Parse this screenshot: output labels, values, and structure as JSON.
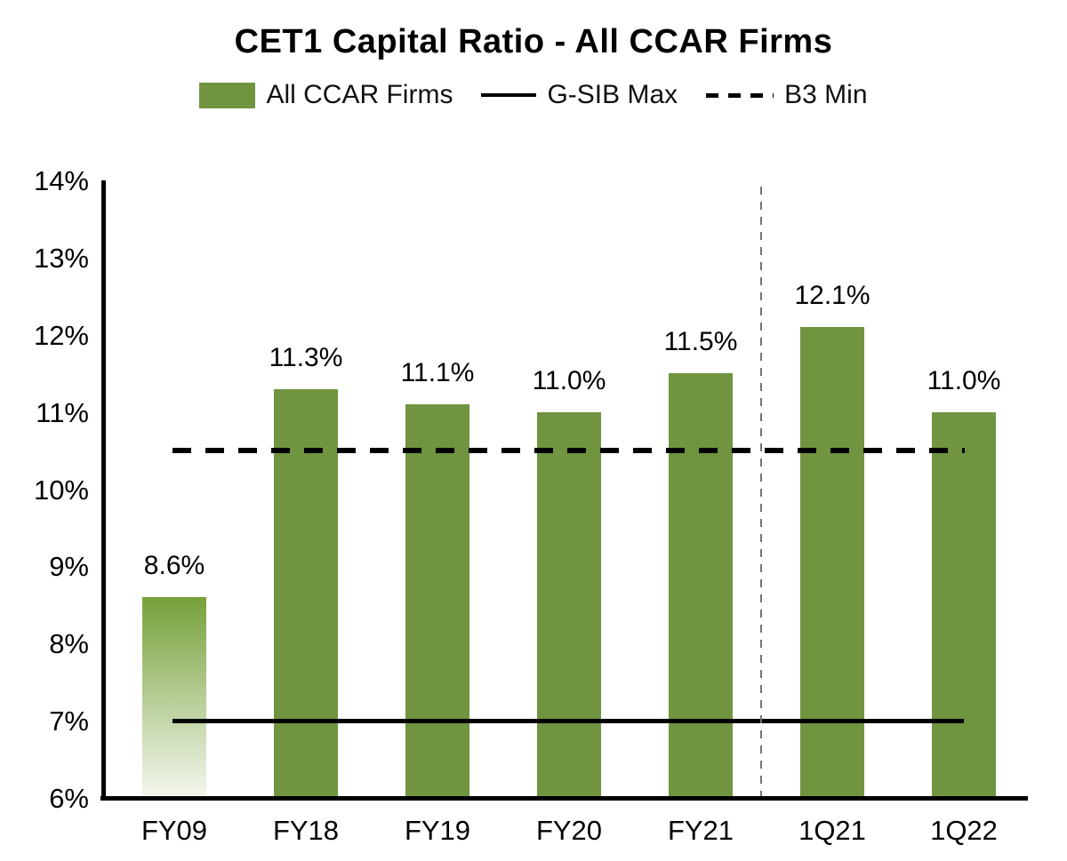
{
  "chart_data": {
    "type": "bar",
    "title": "CET1 Capital Ratio - All CCAR Firms",
    "categories": [
      "FY09",
      "FY18",
      "FY19",
      "FY20",
      "FY21",
      "1Q21",
      "1Q22"
    ],
    "series": [
      {
        "name": "All CCAR Firms",
        "values": [
          8.6,
          11.3,
          11.1,
          11.0,
          11.5,
          12.1,
          11.0
        ]
      }
    ],
    "bar_labels": [
      "8.6%",
      "11.3%",
      "11.1%",
      "11.0%",
      "11.5%",
      "12.1%",
      "11.0%"
    ],
    "legend": [
      {
        "label": "All CCAR Firms",
        "marker": "swatch"
      },
      {
        "label": "G-SIB Max",
        "marker": "solid-line"
      },
      {
        "label": "B3 Min",
        "marker": "dashed-line"
      }
    ],
    "reference_lines": [
      {
        "name": "G-SIB Max",
        "value": 7.0,
        "style": "solid",
        "color": "#000000"
      },
      {
        "name": "B3 Min",
        "value": 10.5,
        "style": "dashed",
        "color": "#000000"
      }
    ],
    "separator": {
      "between": [
        "FY21",
        "1Q21"
      ],
      "style": "dotted",
      "color": "#737373"
    },
    "ylim": [
      6,
      14
    ],
    "ytick_labels": [
      "6%",
      "7%",
      "8%",
      "9%",
      "10%",
      "11%",
      "12%",
      "13%",
      "14%"
    ],
    "xlabel": "",
    "ylabel": "",
    "grid": false,
    "legend_position": "top",
    "bar_color": "#70943F",
    "first_bar_gradient": {
      "top": "#76A13A",
      "bottom": "#F4F7EE"
    },
    "axis_color": "#000000"
  }
}
